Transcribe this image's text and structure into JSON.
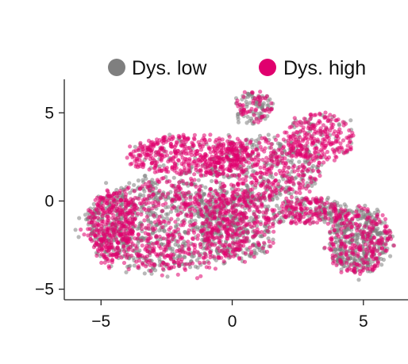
{
  "chart_data": {
    "type": "scatter",
    "title": "",
    "xlabel": "",
    "ylabel": "",
    "xlim": [
      -6.4,
      6.7
    ],
    "ylim": [
      -5.6,
      6.9
    ],
    "x_ticks": [
      {
        "value": -5,
        "label": "−5"
      },
      {
        "value": 0,
        "label": "0"
      },
      {
        "value": 5,
        "label": "5"
      }
    ],
    "y_ticks": [
      {
        "value": -5,
        "label": "−5"
      },
      {
        "value": 0,
        "label": "0"
      },
      {
        "value": 5,
        "label": "5"
      }
    ],
    "grid": false,
    "legend_position": "top",
    "series": [
      {
        "name": "Dys. low",
        "color": "#7f7f7f",
        "approx_points": 2200
      },
      {
        "name": "Dys. high",
        "color": "#e0006e",
        "approx_points": 2400
      }
    ],
    "regions": [
      {
        "cx": -2.4,
        "cy": -1.4,
        "rx": 3.4,
        "ry": 2.9,
        "share": 0.3,
        "high_fraction": 0.45
      },
      {
        "cx": -1.6,
        "cy": 2.6,
        "rx": 2.6,
        "ry": 1.2,
        "share": 0.11,
        "high_fraction": 0.85
      },
      {
        "cx": 1.3,
        "cy": 1.8,
        "rx": 2.3,
        "ry": 2.0,
        "share": 0.13,
        "high_fraction": 0.6
      },
      {
        "cx": 0.8,
        "cy": 5.3,
        "rx": 0.8,
        "ry": 1.0,
        "share": 0.03,
        "high_fraction": 0.4
      },
      {
        "cx": 3.3,
        "cy": 3.6,
        "rx": 1.4,
        "ry": 1.5,
        "share": 0.06,
        "high_fraction": 0.8
      },
      {
        "cx": 0.3,
        "cy": -1.4,
        "rx": 1.8,
        "ry": 2.0,
        "share": 0.1,
        "high_fraction": 0.45
      },
      {
        "cx": 4.8,
        "cy": -2.2,
        "rx": 1.3,
        "ry": 2.1,
        "share": 0.14,
        "high_fraction": 0.4
      },
      {
        "cx": 3.0,
        "cy": -0.6,
        "rx": 1.3,
        "ry": 0.9,
        "share": 0.06,
        "high_fraction": 0.55
      },
      {
        "cx": -4.6,
        "cy": -1.4,
        "rx": 1.0,
        "ry": 2.2,
        "share": 0.07,
        "high_fraction": 0.75
      }
    ]
  }
}
